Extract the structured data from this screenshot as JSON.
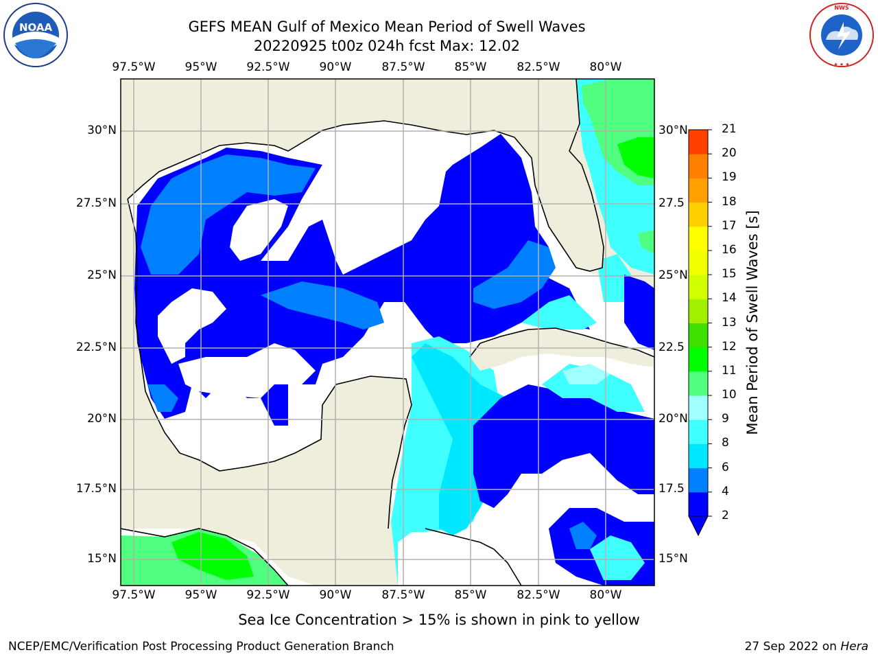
{
  "header": {
    "title_line1": "GEFS MEAN Gulf of Mexico Mean Period of Swell Waves",
    "title_line2": "20220925 t00z 024h fcst   Max: 12.02"
  },
  "map": {
    "lon_labels": [
      "97.5°W",
      "95°W",
      "92.5°W",
      "90°W",
      "87.5°W",
      "85°W",
      "82.5°W",
      "80°W"
    ],
    "lat_labels_left": [
      "30°N",
      "27.5°N",
      "25°N",
      "22.5°N",
      "20°N",
      "17.5°N",
      "15°N"
    ],
    "lat_labels_right": [
      "30°N",
      "27.5",
      "25°N",
      "22.5",
      "20°N",
      "17.5",
      "15°N"
    ],
    "colors": {
      "land": "#efeedc",
      "water_no_data": "#ffffff",
      "grid": "#b0b0b0",
      "coast": "#000000"
    }
  },
  "colorbar": {
    "title": "Mean Period of Swell Waves [s]",
    "tick_labels": [
      "2",
      "4",
      "6",
      "8",
      "9",
      "10",
      "11",
      "12",
      "13",
      "14",
      "15",
      "16",
      "17",
      "18",
      "19",
      "20",
      "21"
    ],
    "colors": [
      "#0000ff",
      "#0080ff",
      "#00e8ff",
      "#40ffff",
      "#a0ffff",
      "#50ff80",
      "#00ff00",
      "#40e000",
      "#a0f000",
      "#d0ff00",
      "#f0ff00",
      "#ffff00",
      "#ffd000",
      "#ffa000",
      "#ff8000",
      "#ff4000",
      "#ff2000",
      "#ff0000"
    ],
    "extend_color": "#0000ff"
  },
  "footer": {
    "note": "Sea Ice Concentration > 15% is shown in pink to yellow",
    "credit_left": "NCEP/EMC/Verification Post Processing Product Generation Branch",
    "credit_right_date": "27 Sep 2022 on",
    "credit_right_host": "Hera"
  },
  "logos": {
    "left_text": "NOAA",
    "right_text": "NATIONAL WEATHER SERVICE"
  }
}
